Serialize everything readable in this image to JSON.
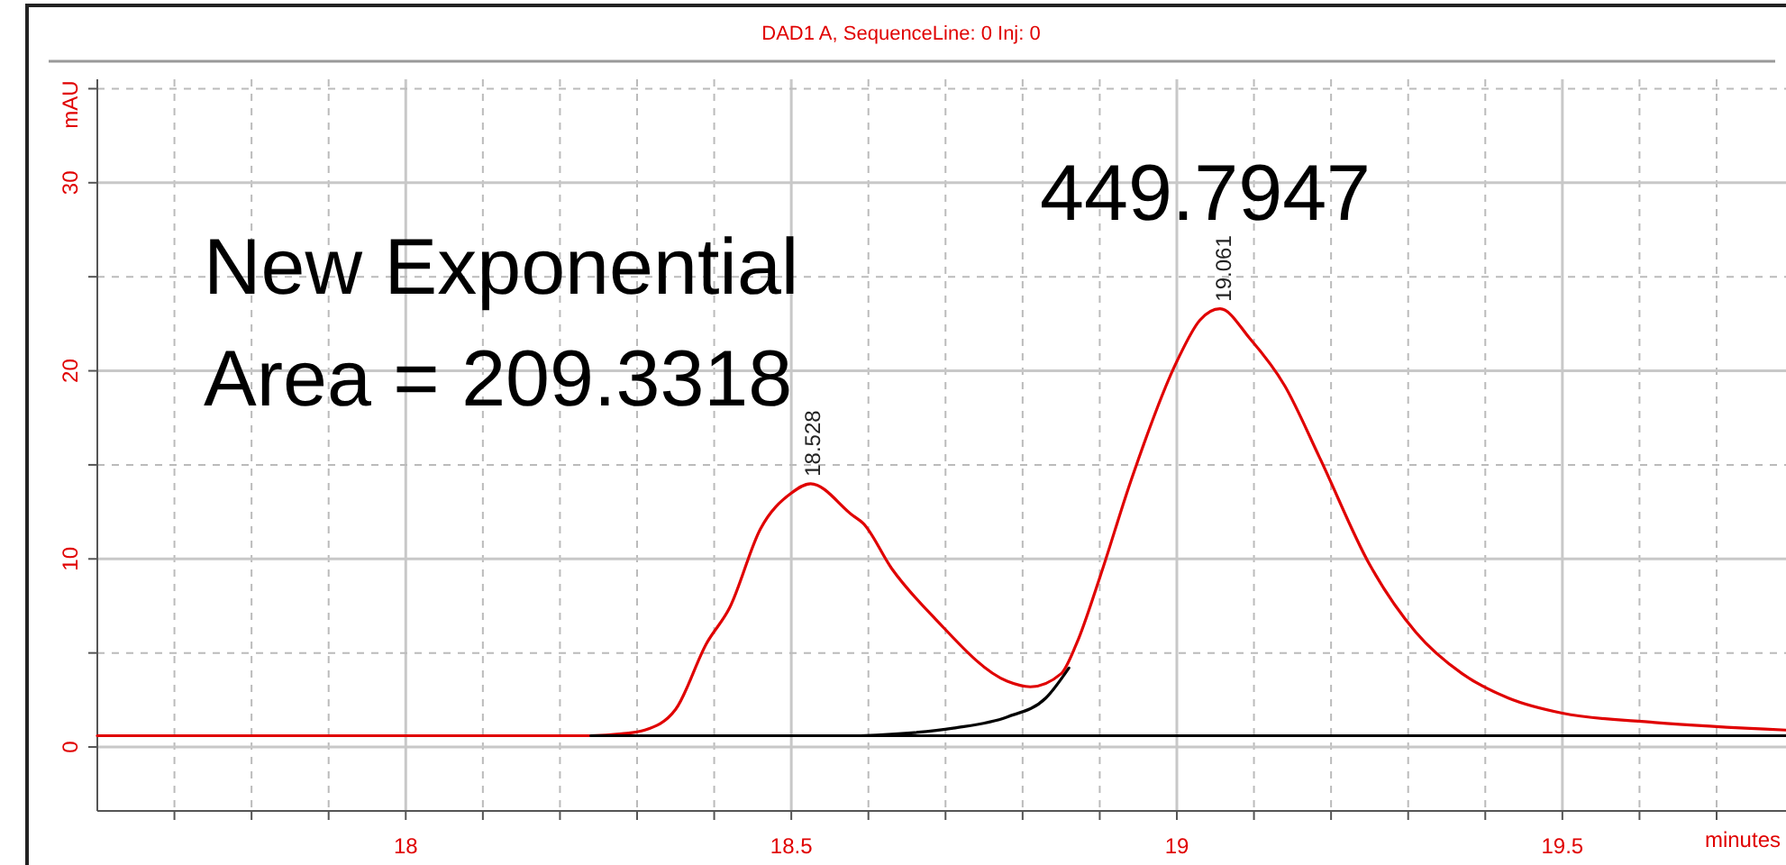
{
  "chart_data": {
    "type": "line",
    "title": "DAD1 A, SequenceLine: 0  Inj: 0",
    "xlabel": "minutes",
    "ylabel": "mAU",
    "xlim": [
      17.6,
      19.79
    ],
    "ylim": [
      -3.4,
      35.5
    ],
    "xticks": [
      {
        "value": 17.7,
        "label": null
      },
      {
        "value": 17.8,
        "label": null
      },
      {
        "value": 17.9,
        "label": null
      },
      18,
      {
        "value": 18.1,
        "label": null
      },
      {
        "value": 18.2,
        "label": null
      },
      {
        "value": 18.3,
        "label": null
      },
      {
        "value": 18.4,
        "label": null
      },
      18.5,
      {
        "value": 18.6,
        "label": null
      },
      {
        "value": 18.7,
        "label": null
      },
      {
        "value": 18.8,
        "label": null
      },
      {
        "value": 18.9,
        "label": null
      },
      19,
      {
        "value": 19.1,
        "label": null
      },
      {
        "value": 19.2,
        "label": null
      },
      {
        "value": 19.3,
        "label": null
      },
      {
        "value": 19.4,
        "label": null
      },
      19.5,
      {
        "value": 19.6,
        "label": null
      },
      {
        "value": 19.7,
        "label": null
      }
    ],
    "yticks": [
      0,
      {
        "value": 5,
        "label": null
      },
      10,
      {
        "value": 15,
        "label": null
      },
      20,
      {
        "value": 25,
        "label": null
      },
      30,
      {
        "value": 35,
        "label": null
      }
    ],
    "grid": true,
    "marker": "none",
    "line_style": "solid",
    "series": [
      {
        "color": "#e00000",
        "x": [
          17.6,
          18.24,
          18.28,
          18.31,
          18.35,
          18.39,
          18.42,
          18.46,
          18.5,
          18.525,
          18.58,
          18.593,
          18.63,
          18.687,
          18.78,
          18.81,
          18.85,
          18.87,
          18.9,
          18.94,
          19.0,
          19.03,
          19.056,
          19.095,
          19.14,
          19.185,
          19.25,
          19.31,
          19.37,
          19.43,
          19.5,
          19.62,
          19.79
        ],
        "values": [
          0.6,
          0.6,
          0.7,
          0.9,
          2.0,
          5.5,
          7.4,
          11.6,
          13.5,
          14.0,
          12.3,
          11.9,
          9.5,
          6.8,
          3.5,
          3.2,
          3.9,
          5.5,
          9.0,
          14.1,
          20.5,
          22.7,
          23.3,
          21.7,
          19.2,
          15.4,
          9.7,
          6.1,
          3.9,
          2.6,
          1.8,
          1.3,
          0.9
        ]
      },
      {
        "color": "#000000",
        "x": [
          18.24,
          19.79
        ],
        "values": [
          0.6,
          0.6
        ]
      },
      {
        "color": "#000000",
        "x": [
          18.59,
          18.71,
          18.78,
          18.83,
          18.86
        ],
        "values": [
          0.6,
          1.0,
          1.6,
          2.6,
          4.2
        ]
      }
    ],
    "annotations": [
      "New Exponential",
      "Area = 209.3318",
      "449.7947",
      {
        "text": "18.528",
        "x": 18.528,
        "y": 14.0
      },
      {
        "text": "19.061",
        "x": 19.061,
        "y": 23.3
      }
    ]
  }
}
